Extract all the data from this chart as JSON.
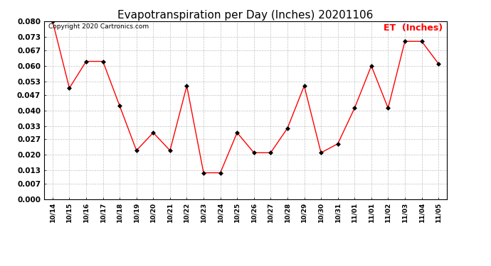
{
  "title": "Evapotranspiration per Day (Inches) 20201106",
  "legend_label": "ET  (Inches)",
  "copyright": "Copyright 2020 Cartronics.com",
  "x_labels": [
    "10/14",
    "10/15",
    "10/16",
    "10/17",
    "10/18",
    "10/19",
    "10/20",
    "10/21",
    "10/22",
    "10/23",
    "10/24",
    "10/25",
    "10/26",
    "10/27",
    "10/28",
    "10/29",
    "10/30",
    "10/31",
    "11/01",
    "11/01",
    "11/02",
    "11/03",
    "11/04",
    "11/05"
  ],
  "y_values": [
    0.08,
    0.05,
    0.062,
    0.062,
    0.042,
    0.022,
    0.03,
    0.022,
    0.051,
    0.012,
    0.012,
    0.03,
    0.021,
    0.021,
    0.032,
    0.051,
    0.021,
    0.025,
    0.041,
    0.06,
    0.041,
    0.071,
    0.071,
    0.061
  ],
  "ylim": [
    0.0,
    0.08
  ],
  "yticks": [
    0.0,
    0.007,
    0.013,
    0.02,
    0.027,
    0.033,
    0.04,
    0.047,
    0.053,
    0.06,
    0.067,
    0.073,
    0.08
  ],
  "line_color": "red",
  "marker_color": "black",
  "marker": "D",
  "background_color": "#ffffff",
  "grid_color": "#bbbbbb",
  "title_fontsize": 11,
  "legend_color": "red",
  "legend_fontsize": 9,
  "copyright_color": "black",
  "copyright_fontsize": 6.5,
  "tick_fontsize": 7.5,
  "xtick_fontsize": 6.5
}
